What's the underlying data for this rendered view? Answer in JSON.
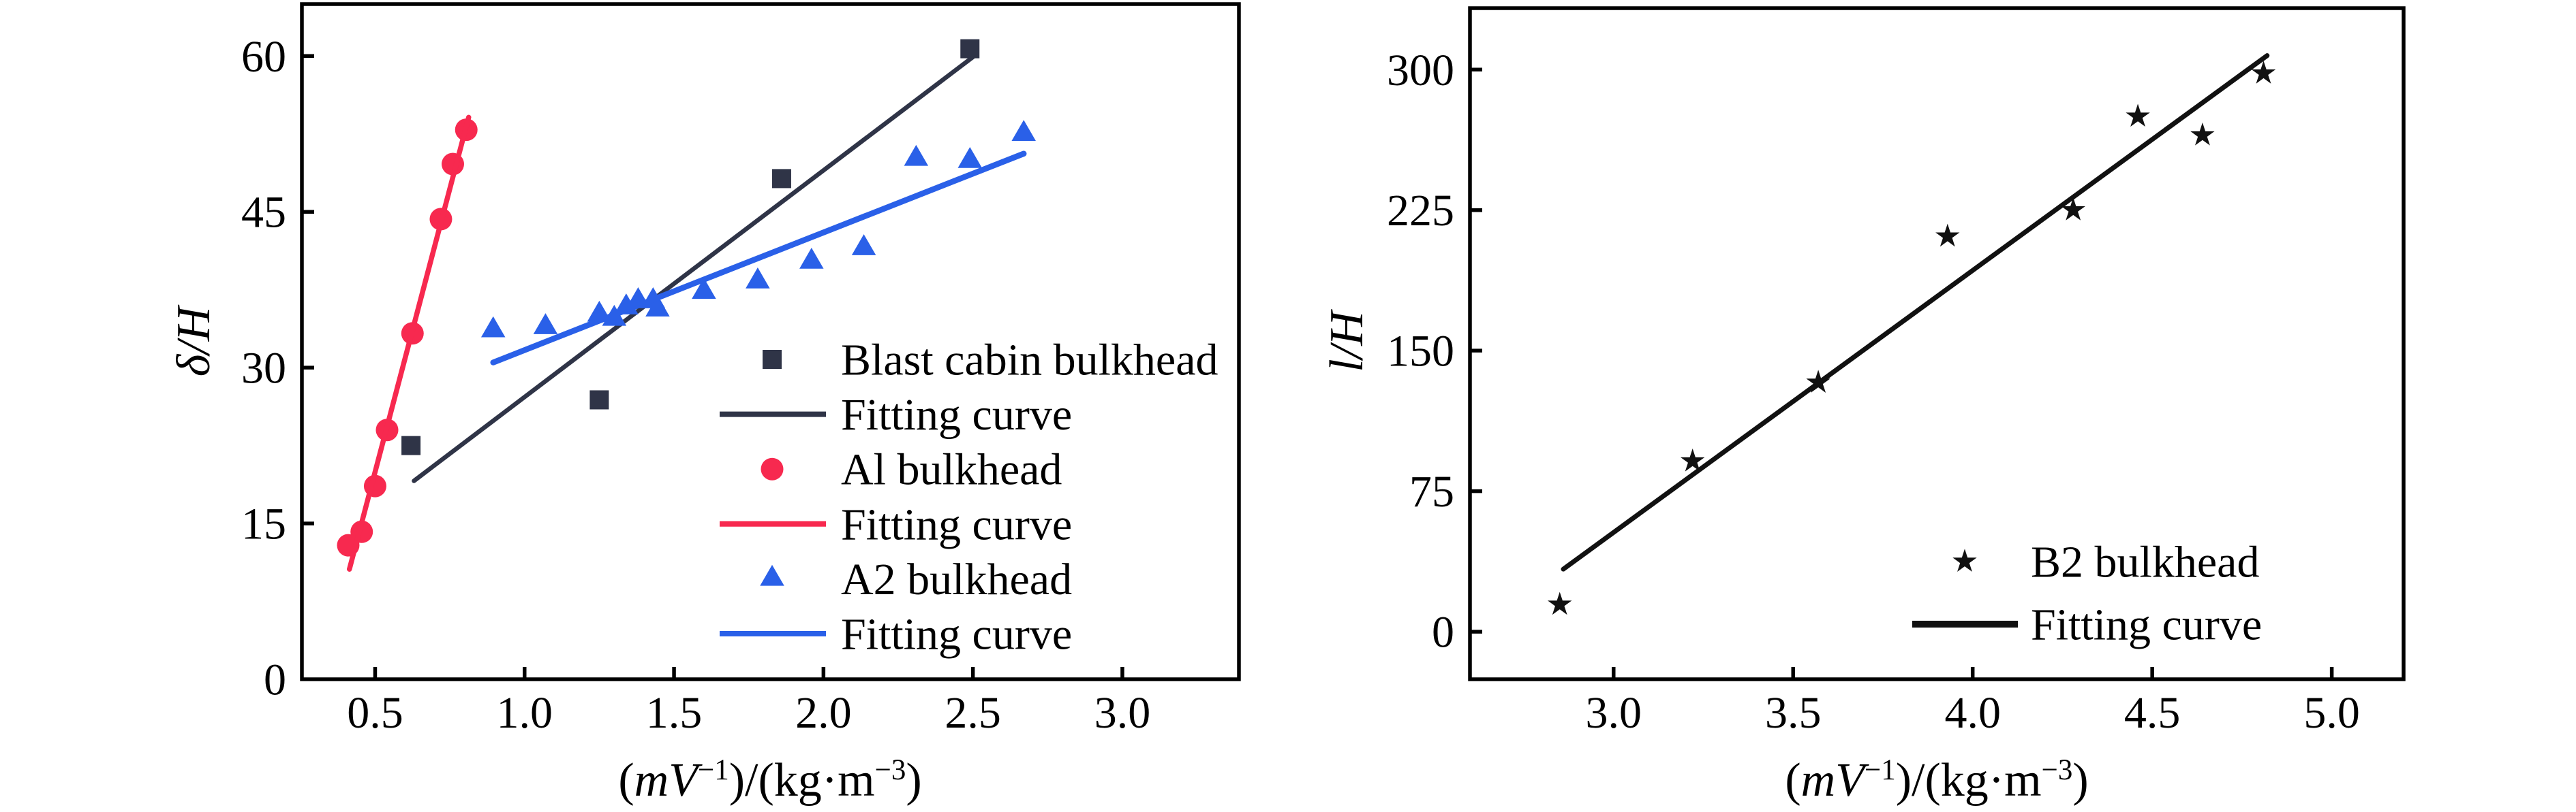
{
  "page": {
    "background": "#ffffff",
    "text_color": "#000000"
  },
  "chart_data": [
    {
      "id": "left",
      "type": "scatter",
      "title": "",
      "xlabel": "(mV⁻¹)/(kg·m⁻³)",
      "xlabel_segments": [
        {
          "t": "(",
          "s": "n"
        },
        {
          "t": "mV",
          "s": "i"
        },
        {
          "t": "−1",
          "s": "sup"
        },
        {
          "t": ")/(kg·m",
          "s": "n"
        },
        {
          "t": "−3",
          "s": "sup"
        },
        {
          "t": ")",
          "s": "n"
        }
      ],
      "ylabel": "δ/H",
      "ylabel_style": "italic",
      "xlim": [
        0.255,
        3.39
      ],
      "ylim": [
        0,
        65
      ],
      "xticks": [
        {
          "v": 0.5,
          "label": "0.5"
        },
        {
          "v": 1.0,
          "label": "1.0"
        },
        {
          "v": 1.5,
          "label": "1.5"
        },
        {
          "v": 2.0,
          "label": "2.0"
        },
        {
          "v": 2.5,
          "label": "2.5"
        },
        {
          "v": 3.0,
          "label": "3.0"
        }
      ],
      "yticks": [
        {
          "v": 0,
          "label": "0"
        },
        {
          "v": 15,
          "label": "15"
        },
        {
          "v": 30,
          "label": "30"
        },
        {
          "v": 45,
          "label": "45"
        },
        {
          "v": 60,
          "label": "60"
        }
      ],
      "grid": false,
      "legend_position": "inside lower right",
      "series": [
        {
          "name": "Blast cabin bulkhead",
          "kind": "scatter",
          "marker": "square",
          "color": "#2F3447",
          "points": [
            [
              0.62,
              22.5
            ],
            [
              1.25,
              26.9
            ],
            [
              1.86,
              48.2
            ],
            [
              2.49,
              60.7
            ]
          ]
        },
        {
          "name": "Fitting curve",
          "kind": "line",
          "color": "#2F3447",
          "lw": 6.5,
          "line": [
            [
              0.63,
              19.1
            ],
            [
              2.5,
              59.9
            ]
          ]
        },
        {
          "name": "Al bulkhead",
          "kind": "scatter",
          "marker": "circle",
          "color": "#F7294F",
          "points": [
            [
              0.41,
              12.9
            ],
            [
              0.455,
              14.2
            ],
            [
              0.5,
              18.6
            ],
            [
              0.54,
              24.0
            ],
            [
              0.625,
              33.3
            ],
            [
              0.72,
              44.3
            ],
            [
              0.76,
              49.6
            ],
            [
              0.805,
              52.9
            ]
          ]
        },
        {
          "name": "Fitting curve",
          "kind": "line",
          "color": "#F7294F",
          "lw": 7.5,
          "line": [
            [
              0.414,
              10.6
            ],
            [
              0.813,
              54.1
            ]
          ]
        },
        {
          "name": "A2 bulkhead",
          "kind": "scatter",
          "marker": "triangle",
          "color": "#2A60E8",
          "points": [
            [
              0.895,
              33.6
            ],
            [
              1.07,
              33.9
            ],
            [
              1.25,
              35.1
            ],
            [
              1.3,
              34.7
            ],
            [
              1.34,
              35.8
            ],
            [
              1.38,
              36.4
            ],
            [
              1.43,
              36.4
            ],
            [
              1.445,
              35.6
            ],
            [
              1.6,
              37.3
            ],
            [
              1.78,
              38.3
            ],
            [
              1.96,
              40.2
            ],
            [
              2.135,
              41.5
            ],
            [
              2.31,
              50.1
            ],
            [
              2.49,
              49.9
            ],
            [
              2.67,
              52.5
            ]
          ]
        },
        {
          "name": "Fitting curve",
          "kind": "line",
          "color": "#2A60E8",
          "lw": 8.5,
          "line": [
            [
              0.895,
              30.5
            ],
            [
              2.67,
              50.6
            ]
          ]
        }
      ]
    },
    {
      "id": "right",
      "type": "scatter",
      "title": "",
      "xlabel": "(mV⁻¹)/(kg·m⁻³)",
      "xlabel_segments": [
        {
          "t": "(",
          "s": "n"
        },
        {
          "t": "mV",
          "s": "i"
        },
        {
          "t": "−1",
          "s": "sup"
        },
        {
          "t": ")/(kg·m",
          "s": "n"
        },
        {
          "t": "−3",
          "s": "sup"
        },
        {
          "t": ")",
          "s": "n"
        }
      ],
      "ylabel": "l/H",
      "ylabel_style": "italic",
      "xlim": [
        2.6,
        5.2
      ],
      "ylim": [
        -25.4,
        332.8
      ],
      "xticks": [
        {
          "v": 3.0,
          "label": "3.0"
        },
        {
          "v": 3.5,
          "label": "3.5"
        },
        {
          "v": 4.0,
          "label": "4.0"
        },
        {
          "v": 4.5,
          "label": "4.5"
        },
        {
          "v": 5.0,
          "label": "5.0"
        }
      ],
      "yticks": [
        {
          "v": 0,
          "label": "0"
        },
        {
          "v": 75,
          "label": "75"
        },
        {
          "v": 150,
          "label": "150"
        },
        {
          "v": 225,
          "label": "225"
        },
        {
          "v": 300,
          "label": "300"
        }
      ],
      "grid": false,
      "legend_position": "inside lower right",
      "series": [
        {
          "name": "B2 bulkhead",
          "kind": "scatter",
          "marker": "star",
          "color": "#111111",
          "points": [
            [
              2.85,
              14.5
            ],
            [
              3.22,
              91.0
            ],
            [
              3.57,
              133.0
            ],
            [
              3.93,
              211.0
            ],
            [
              4.28,
              225.0
            ],
            [
              4.46,
              275.0
            ],
            [
              4.64,
              265.0
            ],
            [
              4.81,
              298.0
            ]
          ]
        },
        {
          "name": "Fitting curve",
          "kind": "line",
          "color": "#111111",
          "lw": 7,
          "line": [
            [
              2.86,
              33.4
            ],
            [
              4.82,
              307.5
            ]
          ]
        }
      ]
    }
  ]
}
